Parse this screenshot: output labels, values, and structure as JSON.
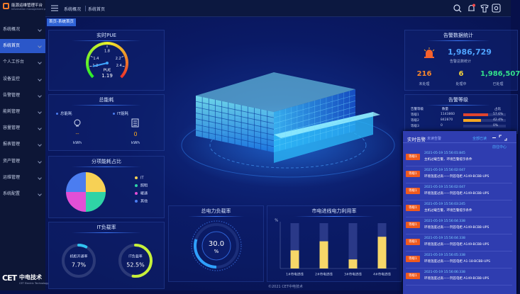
{
  "sidebar": {
    "logo_title": "能源运维管理平台",
    "logo_subtitle": "Information management platform",
    "menu": [
      "系统概况",
      "系统首页",
      "个人工作台",
      "设备监控",
      "告警管理",
      "能耗管理",
      "容量管理",
      "报表管理",
      "资产管理",
      "运维管理",
      "系统配置"
    ],
    "active": 1,
    "brand_mark": "CET",
    "brand": "中电技术",
    "brand_en": "CET Electric Technology"
  },
  "header": {
    "breadcrumb": [
      "系统概况",
      "系统首页"
    ],
    "tab": "首页-系统首页"
  },
  "pue": {
    "title": "实时PUE",
    "label": "PUE",
    "value": 1.19,
    "range": [
      1.0,
      2.6
    ],
    "ticks": [
      1.2,
      1.4,
      1.8,
      2.2,
      2.4
    ]
  },
  "energy": {
    "title": "总能耗",
    "total_label": "总能耗",
    "it_label": "IT能耗",
    "total_value": "--",
    "it_value": "0",
    "total_unit": "kWh",
    "it_unit": "kWh"
  },
  "pie": {
    "title": "分项能耗占比",
    "categories": [
      "IT",
      "照明",
      "暖通",
      "其他"
    ],
    "values": [
      25,
      25,
      25,
      25
    ],
    "colors": [
      "#f7d155",
      "#2fd3a6",
      "#e24fd6",
      "#4b7df0"
    ]
  },
  "it_load": {
    "title": "IT负载率",
    "range": [
      0,
      100
    ],
    "items": [
      {
        "label": "机柜开通率",
        "value": 7.7,
        "value_label": "7.7%",
        "color": "#31c3f0"
      },
      {
        "label": "IT负载率",
        "value": 52.5,
        "value_label": "52.5%",
        "color": "#c6f03a"
      }
    ]
  },
  "load_gauge": {
    "title": "总电力负载率",
    "value": 30.0,
    "value_label": "30.0",
    "unit": "%",
    "range": [
      0,
      100
    ]
  },
  "bar_chart": {
    "title": "市电进线电力利用率",
    "unit": "%",
    "categories": [
      "1#市电进线",
      "2#市电进线",
      "3#市电进线",
      "4#市电进线"
    ],
    "values": [
      40,
      60,
      20,
      70
    ],
    "ylim": [
      0,
      100
    ],
    "color": "#f7d768"
  },
  "alarm_stats": {
    "title": "告警数据统计",
    "total": "1,986,729",
    "total_label": "告警总数统计",
    "items": [
      {
        "value": "216",
        "label": "未处理"
      },
      {
        "value": "6",
        "label": "处理中"
      },
      {
        "value": "1,986,507",
        "label": "已处理"
      }
    ]
  },
  "alarm_levels": {
    "title": "告警等级",
    "headers": [
      "告警等级",
      "数量",
      "占比"
    ],
    "range": [
      0,
      100
    ],
    "rows": [
      {
        "level": "等级1",
        "count": "1143860",
        "share": 57.6,
        "share_label": "57.6%"
      },
      {
        "level": "等级2",
        "count": "842870",
        "share": 42.4,
        "share_label": "42.4%"
      },
      {
        "level": "等级3",
        "count": "0",
        "share": 0,
        "share_label": "0%"
      }
    ]
  },
  "realtime_alarm": {
    "title": "实时告警",
    "tab": "未读告警",
    "action": "全部已读",
    "link": "前往中心",
    "items": [
      {
        "level": "等级1",
        "time": "2021-05-19 15:56:01:845",
        "text": "主机过载告警，环境告警提示条件"
      },
      {
        "level": "等级1",
        "time": "2021-05-19 15:56:02:047",
        "text": "环境温度过高——列首电柜 A149-BCBB-UPS"
      },
      {
        "level": "等级1",
        "time": "2021-05-19 15:56:02:047",
        "text": "环境温度过高——列首电柜 A149-BCBB-UPS"
      },
      {
        "level": "等级1",
        "time": "2021-05-19 15:56:03:245",
        "text": "主机过载告警，环境告警提示条件"
      },
      {
        "level": "等级1",
        "time": "2021-05-19 15:56:04:338",
        "text": "环境温度过高——列首电柜 A149-BCBB-UPS"
      },
      {
        "level": "等级1",
        "time": "2021-05-19 15:56:04:338",
        "text": "环境温度过高——列首电柜 A149-BCBB-UPS"
      },
      {
        "level": "等级1",
        "time": "2021-05-19 15:56:05:338",
        "text": "环境温度过高——列首电柜 A1-18-BCBB-UPS"
      },
      {
        "level": "等级1",
        "time": "2021-05-19 15:56:06:338",
        "text": "环境温度过高——列首电柜 A149-BCBB-UPS"
      }
    ]
  },
  "footer": "©2021 CET中电技术"
}
